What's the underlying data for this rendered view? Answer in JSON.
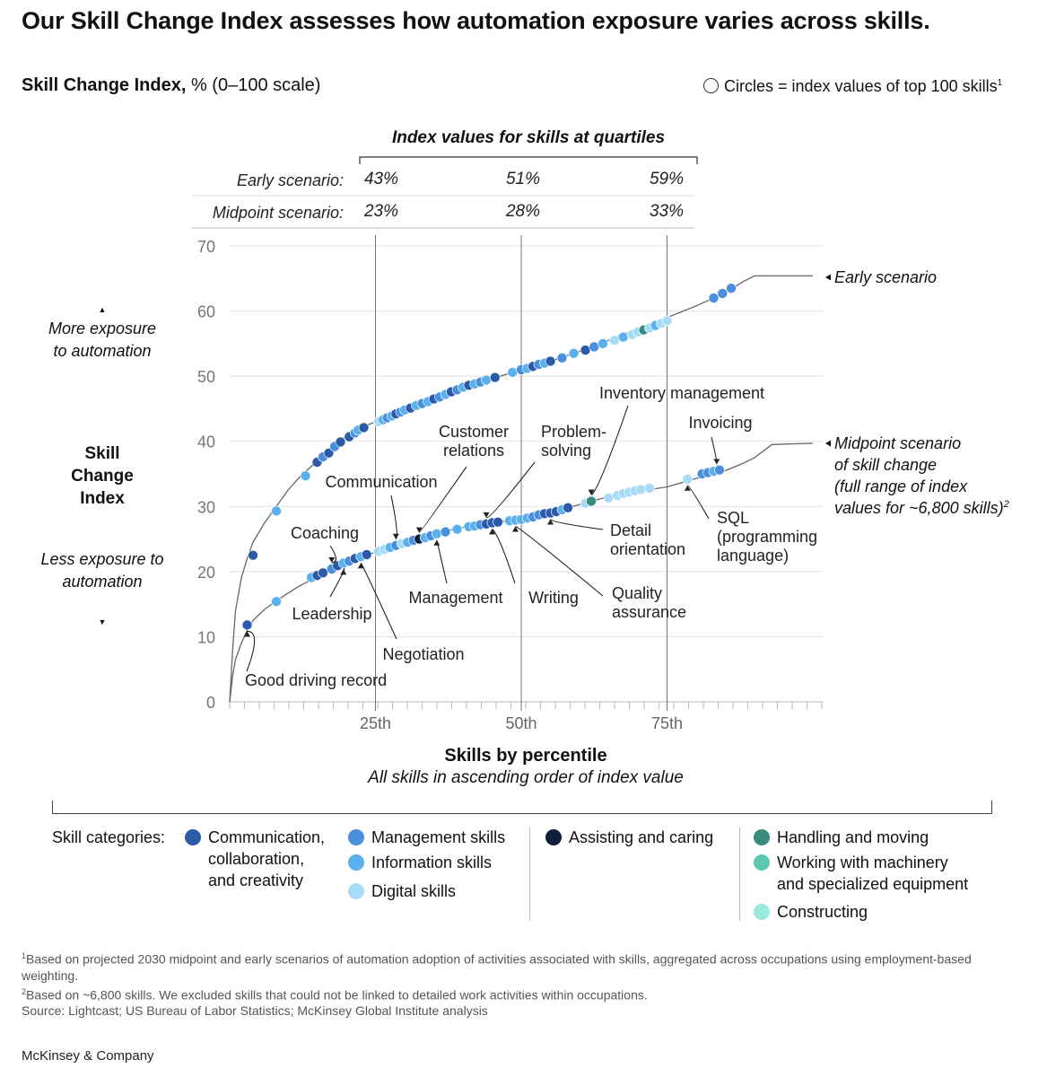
{
  "headline": "Our Skill Change Index assesses how automation exposure varies across skills.",
  "subtitle": {
    "bold": "Skill Change Index,",
    "rest": " % (0–100 scale)"
  },
  "legend_note": {
    "text": "Circles = index values of top 100 skills",
    "sup": "1",
    "icon": "open-circle-icon"
  },
  "y_axis_labels": {
    "more": "More exposure to automation",
    "title": "Skill Change Index",
    "less": "Less exposure to automation",
    "up_arrow": "▲",
    "down_arrow": "▼"
  },
  "quartile_table": {
    "heading": "Index values for skills at quartiles",
    "rows": [
      {
        "label": "Early scenario:",
        "values": [
          "43%",
          "51%",
          "59%"
        ]
      },
      {
        "label": "Midpoint scenario:",
        "values": [
          "23%",
          "28%",
          "33%"
        ]
      }
    ]
  },
  "chart_data": {
    "type": "scatter",
    "xlabel": "Skills by percentile",
    "xsublabel": "All skills in ascending order of index value",
    "ylabel": "Skill Change Index",
    "ylim": [
      0,
      70
    ],
    "xlim": [
      0,
      100
    ],
    "yticks": [
      0,
      10,
      20,
      30,
      40,
      50,
      60,
      70
    ],
    "xticks": [
      {
        "x": 25,
        "label": "25th"
      },
      {
        "x": 50,
        "label": "50th"
      },
      {
        "x": 75,
        "label": "75th"
      }
    ],
    "grid": true,
    "colors": {
      "communication": "#2a5aa8",
      "management": "#4a8ede",
      "information": "#5ab0ec",
      "digital": "#a8dcf6",
      "assisting": "#0d1f3a",
      "handling": "#3a8a7e",
      "machinery": "#5cc8b4",
      "constructing": "#9ae8e0"
    },
    "series": [
      {
        "name": "Early scenario",
        "curve": [
          [
            0,
            0
          ],
          [
            0.5,
            8
          ],
          [
            1,
            14
          ],
          [
            2,
            19
          ],
          [
            3,
            22
          ],
          [
            4,
            24.5
          ],
          [
            6,
            27.5
          ],
          [
            8,
            30
          ],
          [
            10,
            32.5
          ],
          [
            12,
            34.5
          ],
          [
            15,
            37
          ],
          [
            18,
            39.5
          ],
          [
            21,
            41.5
          ],
          [
            25,
            43
          ],
          [
            30,
            45
          ],
          [
            35,
            46.8
          ],
          [
            40,
            48.3
          ],
          [
            45,
            49.6
          ],
          [
            50,
            51
          ],
          [
            55,
            52.3
          ],
          [
            60,
            53.8
          ],
          [
            65,
            55.5
          ],
          [
            70,
            57.3
          ],
          [
            75,
            59
          ],
          [
            80,
            60.8
          ],
          [
            85,
            62.8
          ],
          [
            88,
            64.5
          ],
          [
            90,
            65.4
          ],
          [
            100,
            65.4
          ]
        ],
        "points": [
          [
            4,
            22.5,
            "communication"
          ],
          [
            8,
            29.3,
            "information"
          ],
          [
            13,
            34.7,
            "information"
          ],
          [
            15,
            36.8,
            "communication"
          ],
          [
            16,
            37.6,
            "management"
          ],
          [
            17,
            38.2,
            "communication"
          ],
          [
            18,
            39.2,
            "management"
          ],
          [
            19,
            39.9,
            "communication"
          ],
          [
            20.5,
            40.7,
            "communication"
          ],
          [
            21.5,
            41.3,
            "management"
          ],
          [
            22,
            41.7,
            "information"
          ],
          [
            23,
            42.1,
            "communication"
          ],
          [
            25.5,
            43,
            "digital"
          ],
          [
            26.3,
            43.3,
            "information"
          ],
          [
            27,
            43.6,
            "management"
          ],
          [
            27.8,
            43.9,
            "information"
          ],
          [
            28.5,
            44.2,
            "communication"
          ],
          [
            29.3,
            44.5,
            "management"
          ],
          [
            30,
            44.8,
            "information"
          ],
          [
            31,
            45.1,
            "communication"
          ],
          [
            32,
            45.5,
            "information"
          ],
          [
            33,
            45.8,
            "management"
          ],
          [
            34,
            46.1,
            "information"
          ],
          [
            35,
            46.5,
            "communication"
          ],
          [
            36,
            46.8,
            "management"
          ],
          [
            37,
            47.2,
            "information"
          ],
          [
            38,
            47.6,
            "communication"
          ],
          [
            39,
            47.9,
            "management"
          ],
          [
            40,
            48.3,
            "information"
          ],
          [
            41,
            48.6,
            "communication"
          ],
          [
            42,
            48.8,
            "information"
          ],
          [
            43,
            49.1,
            "management"
          ],
          [
            44,
            49.4,
            "information"
          ],
          [
            45.5,
            49.8,
            "communication"
          ],
          [
            48.5,
            50.6,
            "information"
          ],
          [
            50,
            51,
            "management"
          ],
          [
            51,
            51.2,
            "information"
          ],
          [
            52,
            51.5,
            "communication"
          ],
          [
            53,
            51.8,
            "management"
          ],
          [
            54,
            52,
            "information"
          ],
          [
            55,
            52.3,
            "communication"
          ],
          [
            57,
            52.8,
            "management"
          ],
          [
            59,
            53.5,
            "information"
          ],
          [
            61,
            54,
            "communication"
          ],
          [
            62.5,
            54.5,
            "management"
          ],
          [
            64,
            55,
            "information"
          ],
          [
            66,
            55.5,
            "digital"
          ],
          [
            67.5,
            56,
            "information"
          ],
          [
            69,
            56.4,
            "digital"
          ],
          [
            70,
            56.8,
            "digital"
          ],
          [
            71,
            57.1,
            "handling"
          ],
          [
            72,
            57.4,
            "digital"
          ],
          [
            73,
            57.8,
            "information"
          ],
          [
            74,
            58.1,
            "digital"
          ],
          [
            75,
            58.5,
            "digital"
          ],
          [
            83,
            62,
            "management"
          ],
          [
            84.5,
            62.7,
            "management"
          ],
          [
            86,
            63.5,
            "management"
          ]
        ]
      },
      {
        "name": "Midpoint scenario of skill change (full range of index values for ~6,800 skills)",
        "curve": [
          [
            0,
            0
          ],
          [
            0.5,
            4
          ],
          [
            1,
            6.5
          ],
          [
            2,
            9
          ],
          [
            3,
            11
          ],
          [
            4,
            12.5
          ],
          [
            6,
            14.2
          ],
          [
            8,
            15.5
          ],
          [
            10,
            16.7
          ],
          [
            12,
            17.8
          ],
          [
            15,
            19.2
          ],
          [
            18,
            20.5
          ],
          [
            21,
            21.7
          ],
          [
            25,
            23
          ],
          [
            30,
            24.5
          ],
          [
            35,
            25.8
          ],
          [
            40,
            26.8
          ],
          [
            45,
            27.5
          ],
          [
            50,
            28
          ],
          [
            55,
            29
          ],
          [
            60,
            30.3
          ],
          [
            65,
            31.5
          ],
          [
            70,
            32.3
          ],
          [
            75,
            33
          ],
          [
            80,
            34.3
          ],
          [
            85,
            35.5
          ],
          [
            88,
            36.6
          ],
          [
            90,
            37.5
          ],
          [
            93,
            39.5
          ],
          [
            100,
            39.7
          ]
        ],
        "points": [
          [
            3,
            11.8,
            "communication"
          ],
          [
            8,
            15.4,
            "information"
          ],
          [
            14,
            19.1,
            "information"
          ],
          [
            15,
            19.4,
            "communication"
          ],
          [
            16,
            19.8,
            "communication"
          ],
          [
            17.5,
            20.4,
            "management"
          ],
          [
            18.5,
            20.9,
            "communication"
          ],
          [
            19.5,
            21.3,
            "information"
          ],
          [
            20.5,
            21.6,
            "management"
          ],
          [
            21.5,
            22,
            "communication"
          ],
          [
            22.5,
            22.3,
            "information"
          ],
          [
            23.5,
            22.6,
            "communication"
          ],
          [
            25.5,
            23.1,
            "digital"
          ],
          [
            26.5,
            23.4,
            "digital"
          ],
          [
            27.5,
            23.7,
            "information"
          ],
          [
            28.5,
            24,
            "management"
          ],
          [
            29.5,
            24.3,
            "digital"
          ],
          [
            30.5,
            24.5,
            "information"
          ],
          [
            31.5,
            24.8,
            "management"
          ],
          [
            32.5,
            25,
            "assisting"
          ],
          [
            33.5,
            25.2,
            "information"
          ],
          [
            34.5,
            25.5,
            "management"
          ],
          [
            35.5,
            25.8,
            "information"
          ],
          [
            37,
            26.1,
            "management"
          ],
          [
            39,
            26.5,
            "information"
          ],
          [
            41,
            26.9,
            "information"
          ],
          [
            42,
            27,
            "information"
          ],
          [
            43,
            27.2,
            "management"
          ],
          [
            44,
            27.3,
            "communication"
          ],
          [
            45,
            27.5,
            "communication"
          ],
          [
            46,
            27.6,
            "communication"
          ],
          [
            48,
            27.8,
            "information"
          ],
          [
            49,
            27.9,
            "information"
          ],
          [
            50,
            28,
            "information"
          ],
          [
            51,
            28.2,
            "information"
          ],
          [
            52,
            28.4,
            "management"
          ],
          [
            53,
            28.7,
            "management"
          ],
          [
            54,
            28.9,
            "communication"
          ],
          [
            55,
            29,
            "communication"
          ],
          [
            56,
            29.2,
            "communication"
          ],
          [
            57,
            29.5,
            "information"
          ],
          [
            58,
            29.8,
            "communication"
          ],
          [
            61,
            30.5,
            "digital"
          ],
          [
            62,
            30.8,
            "handling"
          ],
          [
            65,
            31.3,
            "digital"
          ],
          [
            66.5,
            31.7,
            "digital"
          ],
          [
            67.5,
            32,
            "digital"
          ],
          [
            68.5,
            32.2,
            "digital"
          ],
          [
            69.5,
            32.4,
            "digital"
          ],
          [
            70.5,
            32.6,
            "digital"
          ],
          [
            72,
            32.8,
            "digital"
          ],
          [
            78.5,
            34.2,
            "digital"
          ],
          [
            81,
            35,
            "management"
          ],
          [
            82,
            35.2,
            "management"
          ],
          [
            83,
            35.4,
            "information"
          ],
          [
            84,
            35.6,
            "management"
          ]
        ]
      }
    ],
    "series_labels": {
      "early": "Early scenario",
      "mid_lines": [
        "Midpoint scenario",
        "of skill change",
        "(full range of index",
        "values for ~6,800 skills)"
      ],
      "mid_sup": "2"
    },
    "annotations": [
      {
        "lines": [
          "Good driving record"
        ],
        "target": [
          3,
          11.8
        ],
        "anchor": "start"
      },
      {
        "lines": [
          "Coaching"
        ],
        "target": [
          17.5,
          20.4
        ],
        "anchor": "middle"
      },
      {
        "lines": [
          "Leadership"
        ],
        "target": [
          19.5,
          21.3
        ],
        "anchor": "middle"
      },
      {
        "lines": [
          "Negotiation"
        ],
        "target": [
          22.5,
          22.3
        ],
        "anchor": "middle"
      },
      {
        "lines": [
          "Communication"
        ],
        "target": [
          28.5,
          24
        ],
        "anchor": "middle"
      },
      {
        "lines": [
          "Customer",
          "relations"
        ],
        "target": [
          32.5,
          25
        ],
        "anchor": "middle"
      },
      {
        "lines": [
          "Management"
        ],
        "target": [
          35.5,
          25.8
        ],
        "anchor": "middle"
      },
      {
        "lines": [
          "Problem-",
          "solving"
        ],
        "target": [
          44,
          27.3
        ],
        "anchor": "start"
      },
      {
        "lines": [
          "Writing"
        ],
        "target": [
          45,
          27.5
        ],
        "anchor": "middle"
      },
      {
        "lines": [
          "Quality",
          "assurance"
        ],
        "target": [
          49,
          27.9
        ],
        "anchor": "start"
      },
      {
        "lines": [
          "Detail",
          "orientation"
        ],
        "target": [
          55,
          29
        ],
        "anchor": "start"
      },
      {
        "lines": [
          "Inventory management"
        ],
        "target": [
          62,
          30.8
        ],
        "anchor": "middle"
      },
      {
        "lines": [
          "Invoicing"
        ],
        "target": [
          83.5,
          35.5
        ],
        "anchor": "middle"
      },
      {
        "lines": [
          "SQL",
          "(programming",
          "language)"
        ],
        "target": [
          78.5,
          34.2
        ],
        "anchor": "start"
      }
    ]
  },
  "skill_categories": {
    "label": "Skill categories:",
    "groups": [
      [
        {
          "name": "Communication, collaboration, and creativity",
          "lines": [
            "Communication,",
            "collaboration,",
            "and creativity"
          ],
          "color_key": "communication"
        }
      ],
      [
        {
          "name": "Management skills",
          "color_key": "management"
        },
        {
          "name": "Information skills",
          "color_key": "information"
        },
        {
          "name": "Digital skills",
          "color_key": "digital"
        }
      ],
      [
        {
          "name": "Assisting and caring",
          "color_key": "assisting"
        }
      ],
      [
        {
          "name": "Handling and moving",
          "color_key": "handling"
        },
        {
          "name": "Working with machinery and specialized equipment",
          "lines": [
            "Working with machinery",
            "and specialized equipment"
          ],
          "color_key": "machinery"
        },
        {
          "name": "Constructing",
          "color_key": "constructing"
        }
      ]
    ]
  },
  "footnotes": [
    {
      "sup": "1",
      "text": "Based on projected 2030 midpoint and early scenarios of automation adoption of activities associated with skills, aggregated across occupations using employment-based weighting."
    },
    {
      "sup": "2",
      "text": "Based on ~6,800 skills. We excluded skills that could not be linked to detailed work activities within occupations."
    },
    {
      "sup": "",
      "text": "Source: Lightcast; US Bureau of Labor Statistics; McKinsey Global Institute analysis"
    }
  ],
  "brand": "McKinsey & Company"
}
